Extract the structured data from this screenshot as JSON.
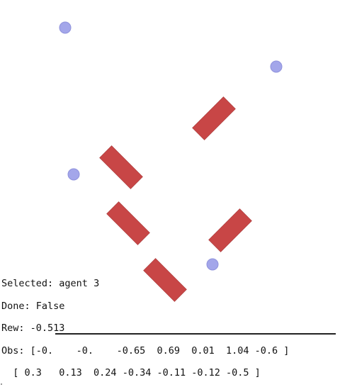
{
  "hud": {
    "selected_label": "Selected:",
    "selected_value": "agent 3",
    "done_label": "Done:",
    "done_value": "False",
    "rew_label": "Rew:",
    "rew_value": "-0.513",
    "obs_label": "Obs:",
    "obs_row1": "[-0.    -0.    -0.65  0.69  0.01  1.04 -0.6 ]",
    "obs_row2": "[ 0.3   0.13  0.24 -0.34 -0.11 -0.12 -0.5 ]"
  },
  "colors": {
    "agent": "#a3a6ea",
    "obstacle": "#c84646",
    "text": "#111111",
    "background": "#ffffff"
  }
}
